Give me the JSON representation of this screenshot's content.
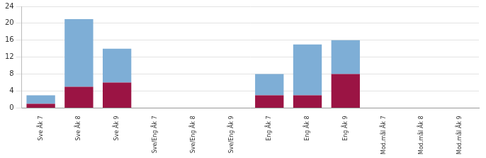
{
  "chart_data": {
    "type": "bar",
    "stacked": true,
    "grid": true,
    "categories": [
      "Sve Åk 7",
      "Sve Åk 8",
      "Sve Åk 9",
      "Sve/Eng Åk 7",
      "Sve/Eng Åk 8",
      "Sve/Eng Åk 9",
      "Eng Åk 7",
      "Eng Åk 8",
      "Eng Åk 9",
      "Mod.mål Åk 7",
      "Mod.mål Åk 8",
      "Mod.mål Åk 9"
    ],
    "series": [
      {
        "color": "#9b1444",
        "values": [
          1,
          5,
          6,
          0,
          0,
          0,
          3,
          3,
          8,
          0,
          0,
          0
        ]
      },
      {
        "color": "#7eaed6",
        "values": [
          2,
          16,
          8,
          0,
          0,
          0,
          5,
          12,
          8,
          0,
          0,
          0
        ]
      }
    ],
    "ylim": [
      0,
      24
    ],
    "yticks": [
      0,
      4,
      8,
      12,
      16,
      20,
      24
    ]
  }
}
